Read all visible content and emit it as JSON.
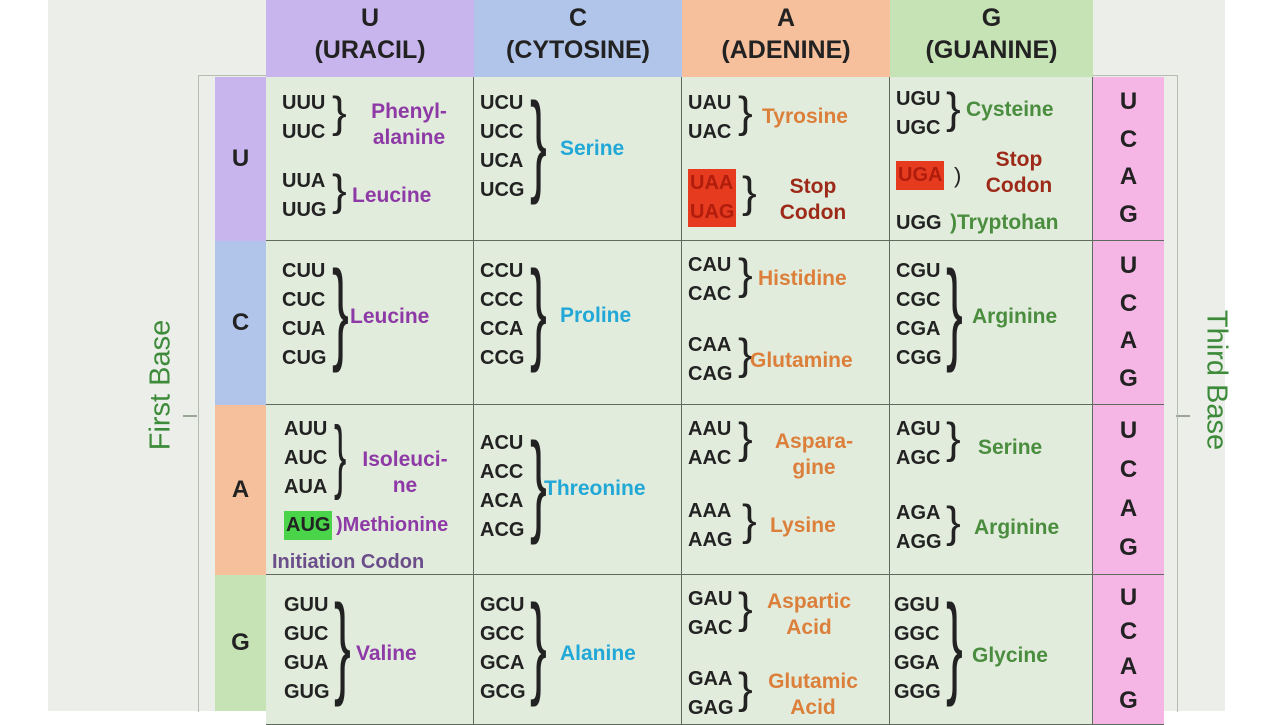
{
  "side_labels": {
    "first": "First Base",
    "third": "Third Base"
  },
  "headers": [
    {
      "letter": "U",
      "name": "(URACIL)"
    },
    {
      "letter": "C",
      "name": "(CYTOSINE)"
    },
    {
      "letter": "A",
      "name": "(ADENINE)"
    },
    {
      "letter": "G",
      "name": "(GUANINE)"
    }
  ],
  "row_labels": [
    "U",
    "C",
    "A",
    "G"
  ],
  "third_base": [
    "U",
    "C",
    "A",
    "G"
  ],
  "cells": {
    "UU": {
      "codons1": [
        "UUU",
        "UUC"
      ],
      "aa1": [
        "Phenyl-",
        "alanine"
      ],
      "codons2": [
        "UUA",
        "UUG"
      ],
      "aa2": "Leucine"
    },
    "UC": {
      "codons": [
        "UCU",
        "UCC",
        "UCA",
        "UCG"
      ],
      "aa": "Serine"
    },
    "UA": {
      "codons1": [
        "UAU",
        "UAC"
      ],
      "aa1": "Tyrosine",
      "codons2": [
        "UAA",
        "UAG"
      ],
      "aa2": [
        "Stop",
        "Codon"
      ]
    },
    "UG": {
      "codons1": [
        "UGU",
        "UGC"
      ],
      "aa1": "Cysteine",
      "codon_stop": "UGA",
      "aa_stop": [
        "Stop",
        "Codon"
      ],
      "codon_trp": "UGG",
      "aa_trp": "Tryptohan"
    },
    "CU": {
      "codons": [
        "CUU",
        "CUC",
        "CUA",
        "CUG"
      ],
      "aa": "Leucine"
    },
    "CC": {
      "codons": [
        "CCU",
        "CCC",
        "CCA",
        "CCG"
      ],
      "aa": "Proline"
    },
    "CA": {
      "codons1": [
        "CAU",
        "CAC"
      ],
      "aa1": "Histidine",
      "codons2": [
        "CAA",
        "CAG"
      ],
      "aa2": "Glutamine"
    },
    "CG": {
      "codons": [
        "CGU",
        "CGC",
        "CGA",
        "CGG"
      ],
      "aa": "Arginine"
    },
    "AU": {
      "codons1": [
        "AUU",
        "AUC",
        "AUA"
      ],
      "aa1": [
        "Isoleuci-",
        "ne"
      ],
      "codon_start": "AUG",
      "aa_start": "Methionine",
      "note": "Initiation Codon"
    },
    "AC": {
      "codons": [
        "ACU",
        "ACC",
        "ACA",
        "ACG"
      ],
      "aa": "Threonine"
    },
    "AA": {
      "codons1": [
        "AAU",
        "AAC"
      ],
      "aa1": [
        "Aspara-",
        "gine"
      ],
      "codons2": [
        "AAA",
        "AAG"
      ],
      "aa2": "Lysine"
    },
    "AG": {
      "codons1": [
        "AGU",
        "AGC"
      ],
      "aa1": "Serine",
      "codons2": [
        "AGA",
        "AGG"
      ],
      "aa2": "Arginine"
    },
    "GU": {
      "codons": [
        "GUU",
        "GUC",
        "GUA",
        "GUG"
      ],
      "aa": "Valine"
    },
    "GC": {
      "codons": [
        "GCU",
        "GCC",
        "GCA",
        "GCG"
      ],
      "aa": "Alanine"
    },
    "GA": {
      "codons1": [
        "GAU",
        "GAC"
      ],
      "aa1": [
        "Aspartic",
        "Acid"
      ],
      "codons2": [
        "GAA",
        "GAG"
      ],
      "aa2": [
        "Glutamic",
        "Acid"
      ]
    },
    "GG": {
      "codons": [
        "GGU",
        "GGC",
        "GGA",
        "GGG"
      ],
      "aa": "Glycine"
    }
  },
  "colors": {
    "uracil": "#c9b5ee",
    "cytosine": "#b1c4ea",
    "adenine": "#f5c09b",
    "guanine": "#c5e3b5",
    "third_base": "#f5b6e6",
    "stop_highlight": "#e63b1f",
    "start_highlight": "#49d44a"
  }
}
